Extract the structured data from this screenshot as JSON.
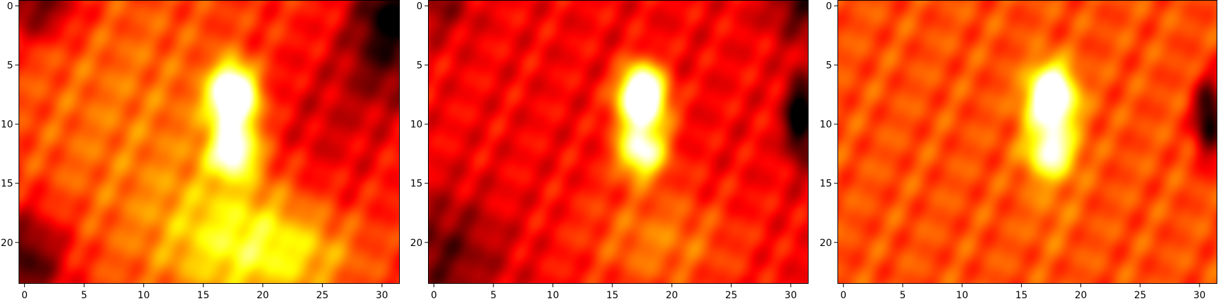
{
  "chart_data": [
    {
      "type": "heatmap",
      "title": "",
      "xlabel": "",
      "ylabel": "",
      "colormap": "hot",
      "grid": false,
      "xlim": [
        -0.5,
        31.5
      ],
      "ylim": [
        23.5,
        -0.5
      ],
      "xticks": [
        0,
        5,
        10,
        15,
        20,
        25,
        30
      ],
      "yticks": [
        0,
        5,
        10,
        15,
        20
      ],
      "xtick_labels": [
        "0",
        "5",
        "10",
        "15",
        "20",
        "25",
        "30"
      ],
      "ytick_labels": [
        "0",
        "5",
        "10",
        "15",
        "20"
      ],
      "background": 0.42,
      "blobs": [
        {
          "x": 17.5,
          "y": 6.8,
          "sx": 1.2,
          "sy": 1.5,
          "amp": 0.55
        },
        {
          "x": 17.5,
          "y": 8.5,
          "sx": 1.5,
          "sy": 1.6,
          "amp": 0.55
        },
        {
          "x": 17.5,
          "y": 12.3,
          "sx": 1.4,
          "sy": 1.5,
          "amp": 0.58
        },
        {
          "x": 17.5,
          "y": 19.5,
          "sx": 4.5,
          "sy": 4.0,
          "amp": 0.28
        },
        {
          "x": 23.0,
          "y": 21.0,
          "sx": 4.0,
          "sy": 2.5,
          "amp": 0.18
        },
        {
          "x": 9.0,
          "y": 10.0,
          "sx": 7.0,
          "sy": 9.0,
          "amp": 0.12
        },
        {
          "x": 0.0,
          "y": 21.5,
          "sx": 2.5,
          "sy": 3.0,
          "amp": -0.35
        },
        {
          "x": 30.5,
          "y": 3.5,
          "sx": 2.5,
          "sy": 3.5,
          "amp": -0.3
        },
        {
          "x": 1.0,
          "y": 0.0,
          "sx": 2.5,
          "sy": 2.0,
          "amp": -0.3
        },
        {
          "x": 31.0,
          "y": 0.0,
          "sx": 2.0,
          "sy": 2.0,
          "amp": -0.25
        },
        {
          "x": 25.0,
          "y": 10.0,
          "sx": 4.0,
          "sy": 5.0,
          "amp": -0.12
        }
      ]
    },
    {
      "type": "heatmap",
      "title": "",
      "xlabel": "",
      "ylabel": "",
      "colormap": "hot",
      "grid": false,
      "xlim": [
        -0.5,
        31.5
      ],
      "ylim": [
        23.5,
        -0.5
      ],
      "xticks": [
        0,
        5,
        10,
        15,
        20,
        25,
        30
      ],
      "yticks": [
        0,
        5,
        10,
        15,
        20
      ],
      "xtick_labels": [
        "0",
        "5",
        "10",
        "15",
        "20",
        "25",
        "30"
      ],
      "ytick_labels": [
        "0",
        "5",
        "10",
        "15",
        "20"
      ],
      "background": 0.36,
      "blobs": [
        {
          "x": 17.5,
          "y": 6.8,
          "sx": 1.2,
          "sy": 1.5,
          "amp": 0.6
        },
        {
          "x": 17.5,
          "y": 8.5,
          "sx": 1.5,
          "sy": 1.6,
          "amp": 0.6
        },
        {
          "x": 17.5,
          "y": 12.3,
          "sx": 1.4,
          "sy": 1.5,
          "amp": 0.62
        },
        {
          "x": 17.5,
          "y": 19.5,
          "sx": 4.0,
          "sy": 3.5,
          "amp": 0.14
        },
        {
          "x": 22.0,
          "y": 20.5,
          "sx": 4.0,
          "sy": 3.0,
          "amp": 0.08
        },
        {
          "x": 0.5,
          "y": 21.0,
          "sx": 3.5,
          "sy": 3.5,
          "amp": -0.22
        },
        {
          "x": 30.8,
          "y": 9.5,
          "sx": 0.9,
          "sy": 2.5,
          "amp": -0.45
        },
        {
          "x": 31.0,
          "y": 0.0,
          "sx": 2.0,
          "sy": 2.0,
          "amp": -0.25
        },
        {
          "x": 0.5,
          "y": 0.0,
          "sx": 2.0,
          "sy": 2.0,
          "amp": -0.15
        }
      ]
    },
    {
      "type": "heatmap",
      "title": "",
      "xlabel": "",
      "ylabel": "",
      "colormap": "hot",
      "grid": false,
      "xlim": [
        -0.5,
        31.5
      ],
      "ylim": [
        23.5,
        -0.5
      ],
      "xticks": [
        0,
        5,
        10,
        15,
        20,
        25,
        30
      ],
      "yticks": [
        0,
        5,
        10,
        15,
        20
      ],
      "xtick_labels": [
        "0",
        "5",
        "10",
        "15",
        "20",
        "25",
        "30"
      ],
      "ytick_labels": [
        "0",
        "5",
        "10",
        "15",
        "20"
      ],
      "background": 0.48,
      "blobs": [
        {
          "x": 17.5,
          "y": 6.8,
          "sx": 1.2,
          "sy": 1.5,
          "amp": 0.5
        },
        {
          "x": 17.5,
          "y": 8.5,
          "sx": 1.5,
          "sy": 1.6,
          "amp": 0.5
        },
        {
          "x": 17.5,
          "y": 12.3,
          "sx": 1.4,
          "sy": 1.5,
          "amp": 0.52
        },
        {
          "x": 17.5,
          "y": 17.0,
          "sx": 1.5,
          "sy": 2.5,
          "amp": 0.06
        },
        {
          "x": 30.8,
          "y": 9.5,
          "sx": 0.9,
          "sy": 2.3,
          "amp": -0.5
        }
      ]
    }
  ]
}
